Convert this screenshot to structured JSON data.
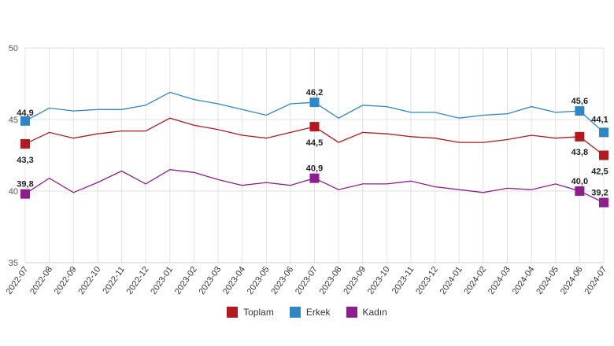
{
  "chart_data": {
    "type": "line",
    "x": [
      "2022-07",
      "2022-08",
      "2022-09",
      "2022-10",
      "2022-11",
      "2022-12",
      "2023-01",
      "2023-02",
      "2023-03",
      "2023-04",
      "2023-05",
      "2023-06",
      "2023-07",
      "2023-08",
      "2023-09",
      "2023-10",
      "2023-11",
      "2023-12",
      "2024-01",
      "2024-02",
      "2024-03",
      "2024-04",
      "2024-05",
      "2024-06",
      "2024-07"
    ],
    "ylim": [
      35,
      50
    ],
    "yticks": [
      "35",
      "40",
      "45",
      "50"
    ],
    "grid": true,
    "legend_position": "bottom-center",
    "series": [
      {
        "name": "Toplam",
        "color": "#b3191d",
        "values": [
          43.3,
          44.1,
          43.7,
          44.0,
          44.2,
          44.2,
          45.1,
          44.6,
          44.3,
          43.9,
          43.7,
          44.1,
          44.5,
          43.4,
          44.1,
          44.0,
          43.8,
          43.7,
          43.4,
          43.4,
          43.6,
          43.9,
          43.7,
          43.8,
          42.5
        ]
      },
      {
        "name": "Erkek",
        "color": "#2f86c6",
        "values": [
          44.9,
          45.8,
          45.6,
          45.7,
          45.7,
          46.0,
          46.9,
          46.4,
          46.1,
          45.7,
          45.3,
          46.1,
          46.2,
          45.1,
          46.0,
          45.9,
          45.5,
          45.5,
          45.1,
          45.3,
          45.4,
          45.9,
          45.5,
          45.6,
          44.1
        ]
      },
      {
        "name": "Kadın",
        "color": "#8e1d8e",
        "values": [
          39.8,
          40.9,
          39.9,
          40.6,
          41.4,
          40.5,
          41.5,
          41.3,
          40.8,
          40.4,
          40.6,
          40.4,
          40.9,
          40.1,
          40.5,
          40.5,
          40.7,
          40.3,
          40.1,
          39.9,
          40.2,
          40.1,
          40.5,
          40.0,
          39.2
        ]
      }
    ],
    "labels": [
      {
        "series": 0,
        "index": 0,
        "text": "43,3"
      },
      {
        "series": 0,
        "index": 12,
        "text": "44,5"
      },
      {
        "series": 0,
        "index": 23,
        "text": "43,8"
      },
      {
        "series": 0,
        "index": 24,
        "text": "42,5"
      },
      {
        "series": 1,
        "index": 0,
        "text": "44,9"
      },
      {
        "series": 1,
        "index": 12,
        "text": "46,2"
      },
      {
        "series": 1,
        "index": 23,
        "text": "45,6"
      },
      {
        "series": 1,
        "index": 24,
        "text": "44,1"
      },
      {
        "series": 2,
        "index": 0,
        "text": "39,8"
      },
      {
        "series": 2,
        "index": 12,
        "text": "40,9"
      },
      {
        "series": 2,
        "index": 23,
        "text": "40,0"
      },
      {
        "series": 2,
        "index": 24,
        "text": "39,2"
      }
    ]
  },
  "legend": {
    "items": [
      {
        "label": "Toplam",
        "color": "#b3191d"
      },
      {
        "label": "Erkek",
        "color": "#2f86c6"
      },
      {
        "label": "Kadın",
        "color": "#8e1d8e"
      }
    ]
  }
}
